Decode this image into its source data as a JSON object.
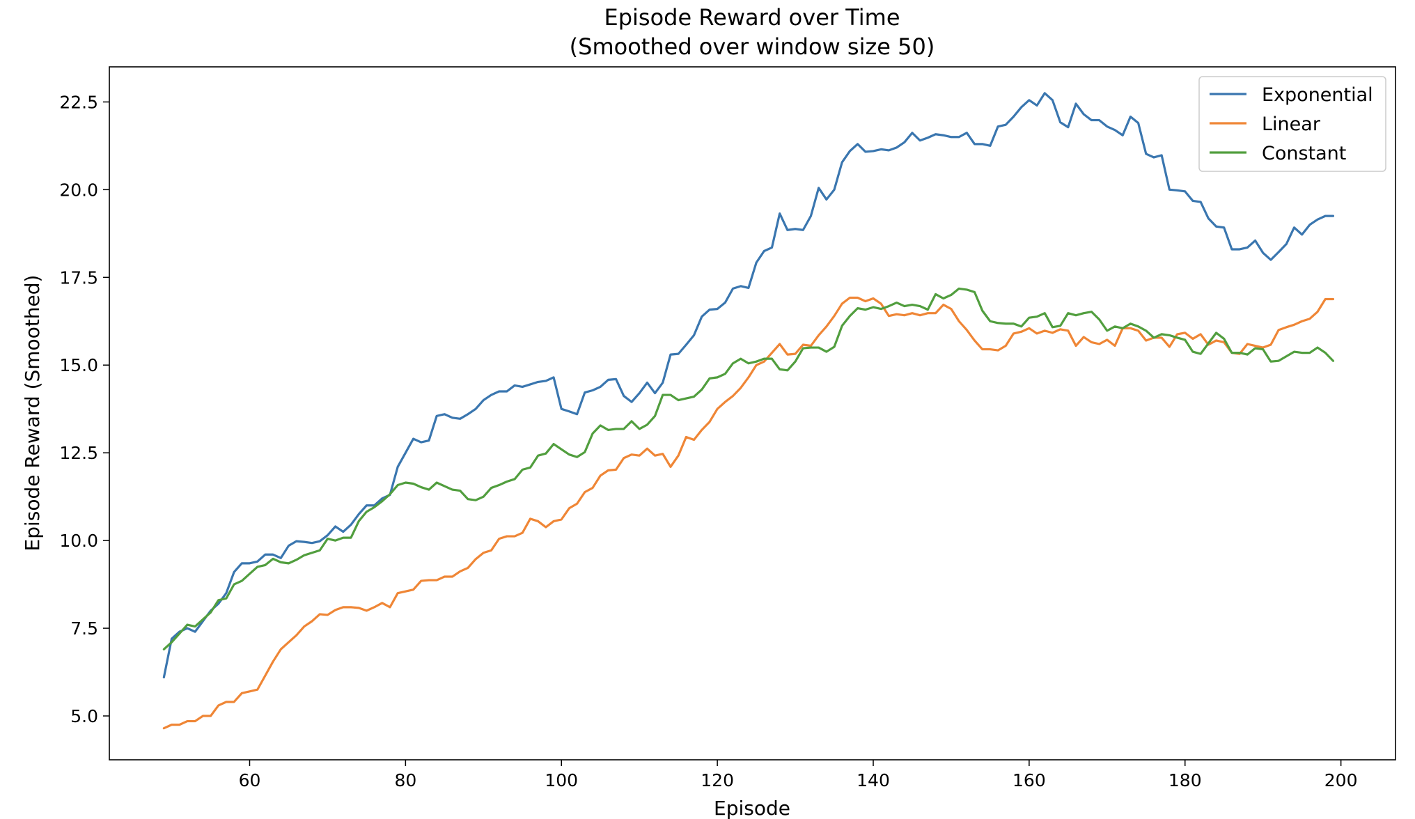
{
  "chart_data": {
    "type": "line",
    "title": "Episode Reward over Time",
    "subtitle": "(Smoothed over window size 50)",
    "xlabel": "Episode",
    "ylabel": "Episode Reward (Smoothed)",
    "xlim": [
      42,
      207
    ],
    "ylim": [
      3.75,
      23.5
    ],
    "xticks": [
      60,
      80,
      100,
      120,
      140,
      160,
      180,
      200
    ],
    "xtick_labels": [
      "60",
      "80",
      "100",
      "120",
      "140",
      "160",
      "180",
      "200"
    ],
    "yticks": [
      5.0,
      7.5,
      10.0,
      12.5,
      15.0,
      17.5,
      20.0,
      22.5
    ],
    "ytick_labels": [
      "5.0",
      "7.5",
      "10.0",
      "12.5",
      "15.0",
      "17.5",
      "20.0",
      "22.5"
    ],
    "grid": false,
    "legend_position": "top-right",
    "x": [
      49,
      50,
      51,
      52,
      53,
      54,
      55,
      56,
      57,
      58,
      59,
      60,
      61,
      62,
      63,
      64,
      65,
      66,
      67,
      68,
      69,
      70,
      71,
      72,
      73,
      74,
      75,
      76,
      77,
      78,
      79,
      80,
      81,
      82,
      83,
      84,
      85,
      86,
      87,
      88,
      89,
      90,
      91,
      92,
      93,
      94,
      95,
      96,
      97,
      98,
      99,
      100,
      101,
      102,
      103,
      104,
      105,
      106,
      107,
      108,
      109,
      110,
      111,
      112,
      113,
      114,
      115,
      116,
      117,
      118,
      119,
      120,
      121,
      122,
      123,
      124,
      125,
      126,
      127,
      128,
      129,
      130,
      131,
      132,
      133,
      134,
      135,
      136,
      137,
      138,
      139,
      140,
      141,
      142,
      143,
      144,
      145,
      146,
      147,
      148,
      149,
      150,
      151,
      152,
      153,
      154,
      155,
      156,
      157,
      158,
      159,
      160,
      161,
      162,
      163,
      164,
      165,
      166,
      167,
      168,
      169,
      170,
      171,
      172,
      173,
      174,
      175,
      176,
      177,
      178,
      179,
      180,
      181,
      182,
      183,
      184,
      185,
      186,
      187,
      188,
      189,
      190,
      191,
      192,
      193,
      194,
      195,
      196,
      197,
      198,
      199
    ],
    "series": [
      {
        "name": "Exponential",
        "color": "#3a76af",
        "values": [
          6.1,
          7.2,
          7.4,
          7.5,
          7.4,
          7.7,
          8.0,
          8.2,
          8.5,
          9.1,
          9.35,
          9.35,
          9.4,
          9.6,
          9.6,
          9.5,
          9.85,
          9.98,
          9.96,
          9.93,
          9.98,
          10.15,
          10.4,
          10.25,
          10.45,
          10.75,
          11.0,
          11.0,
          11.2,
          11.3,
          12.1,
          12.5,
          12.9,
          12.8,
          12.85,
          13.55,
          13.6,
          13.5,
          13.47,
          13.6,
          13.75,
          14.0,
          14.15,
          14.25,
          14.25,
          14.42,
          14.38,
          14.45,
          14.52,
          14.55,
          14.65,
          13.75,
          13.68,
          13.6,
          14.22,
          14.28,
          14.38,
          14.58,
          14.6,
          14.12,
          13.95,
          14.2,
          14.5,
          14.2,
          14.5,
          15.3,
          15.32,
          15.58,
          15.85,
          16.38,
          16.58,
          16.6,
          16.78,
          17.18,
          17.25,
          17.2,
          17.92,
          18.25,
          18.35,
          19.32,
          18.85,
          18.88,
          18.85,
          19.25,
          20.05,
          19.72,
          20.0,
          20.78,
          21.1,
          21.3,
          21.08,
          21.1,
          21.15,
          21.12,
          21.2,
          21.35,
          21.62,
          21.4,
          21.48,
          21.58,
          21.55,
          21.5,
          21.5,
          21.62,
          21.3,
          21.3,
          21.25,
          21.8,
          21.85,
          22.08,
          22.35,
          22.55,
          22.4,
          22.75,
          22.55,
          21.92,
          21.78,
          22.45,
          22.15,
          21.98,
          21.98,
          21.8,
          21.7,
          21.55,
          22.08,
          21.9,
          21.02,
          20.92,
          20.98,
          20.0,
          19.98,
          19.95,
          19.68,
          19.65,
          19.18,
          18.95,
          18.92,
          18.3,
          18.3,
          18.35,
          18.55,
          18.2,
          18.0,
          18.22,
          18.45,
          18.92,
          18.72,
          19.0,
          19.15,
          19.25,
          19.25
        ]
      },
      {
        "name": "Linear",
        "color": "#ef8636",
        "values": [
          4.65,
          4.75,
          4.75,
          4.85,
          4.85,
          5.0,
          5.0,
          5.3,
          5.4,
          5.4,
          5.65,
          5.7,
          5.75,
          6.15,
          6.55,
          6.9,
          7.1,
          7.3,
          7.55,
          7.7,
          7.9,
          7.88,
          8.02,
          8.1,
          8.1,
          8.08,
          8.0,
          8.1,
          8.22,
          8.1,
          8.5,
          8.55,
          8.6,
          8.85,
          8.87,
          8.87,
          8.97,
          8.97,
          9.12,
          9.22,
          9.47,
          9.65,
          9.72,
          10.05,
          10.12,
          10.12,
          10.22,
          10.62,
          10.55,
          10.38,
          10.55,
          10.6,
          10.92,
          11.05,
          11.38,
          11.5,
          11.85,
          12.0,
          12.02,
          12.35,
          12.45,
          12.42,
          12.62,
          12.42,
          12.47,
          12.1,
          12.42,
          12.95,
          12.87,
          13.15,
          13.38,
          13.75,
          13.95,
          14.12,
          14.35,
          14.65,
          15.0,
          15.1,
          15.35,
          15.6,
          15.3,
          15.32,
          15.58,
          15.55,
          15.85,
          16.1,
          16.4,
          16.75,
          16.92,
          16.92,
          16.82,
          16.9,
          16.75,
          16.4,
          16.45,
          16.42,
          16.48,
          16.42,
          16.48,
          16.48,
          16.72,
          16.6,
          16.25,
          16.0,
          15.7,
          15.45,
          15.45,
          15.42,
          15.55,
          15.9,
          15.95,
          16.05,
          15.9,
          15.98,
          15.92,
          16.02,
          15.98,
          15.55,
          15.8,
          15.65,
          15.6,
          15.72,
          15.55,
          16.05,
          16.05,
          15.98,
          15.7,
          15.78,
          15.78,
          15.52,
          15.88,
          15.92,
          15.75,
          15.88,
          15.58,
          15.7,
          15.65,
          15.35,
          15.32,
          15.6,
          15.55,
          15.5,
          15.58,
          16.0,
          16.08,
          16.15,
          16.25,
          16.32,
          16.52,
          16.88,
          16.88
        ]
      },
      {
        "name": "Constant",
        "color": "#519e3e",
        "values": [
          6.9,
          7.1,
          7.35,
          7.6,
          7.55,
          7.75,
          7.95,
          8.3,
          8.35,
          8.75,
          8.85,
          9.05,
          9.25,
          9.3,
          9.48,
          9.38,
          9.35,
          9.45,
          9.58,
          9.65,
          9.72,
          10.05,
          10.0,
          10.08,
          10.08,
          10.55,
          10.82,
          10.95,
          11.12,
          11.32,
          11.58,
          11.65,
          11.62,
          11.52,
          11.45,
          11.65,
          11.55,
          11.45,
          11.42,
          11.18,
          11.15,
          11.25,
          11.5,
          11.58,
          11.68,
          11.75,
          12.02,
          12.08,
          12.42,
          12.48,
          12.75,
          12.6,
          12.45,
          12.38,
          12.52,
          13.05,
          13.28,
          13.15,
          13.18,
          13.18,
          13.4,
          13.18,
          13.3,
          13.55,
          14.15,
          14.15,
          14.0,
          14.05,
          14.1,
          14.3,
          14.62,
          14.65,
          14.75,
          15.05,
          15.18,
          15.05,
          15.1,
          15.18,
          15.18,
          14.88,
          14.85,
          15.1,
          15.48,
          15.5,
          15.5,
          15.38,
          15.52,
          16.12,
          16.4,
          16.62,
          16.58,
          16.65,
          16.6,
          16.68,
          16.78,
          16.68,
          16.72,
          16.68,
          16.58,
          17.02,
          16.9,
          17.0,
          17.18,
          17.15,
          17.08,
          16.55,
          16.25,
          16.2,
          16.18,
          16.18,
          16.1,
          16.35,
          16.38,
          16.48,
          16.08,
          16.12,
          16.48,
          16.42,
          16.48,
          16.52,
          16.3,
          15.98,
          16.1,
          16.05,
          16.18,
          16.1,
          15.98,
          15.78,
          15.88,
          15.85,
          15.78,
          15.72,
          15.38,
          15.32,
          15.62,
          15.92,
          15.75,
          15.35,
          15.35,
          15.3,
          15.48,
          15.45,
          15.1,
          15.12,
          15.25,
          15.38,
          15.35,
          15.35,
          15.5,
          15.35,
          15.12
        ]
      }
    ]
  }
}
